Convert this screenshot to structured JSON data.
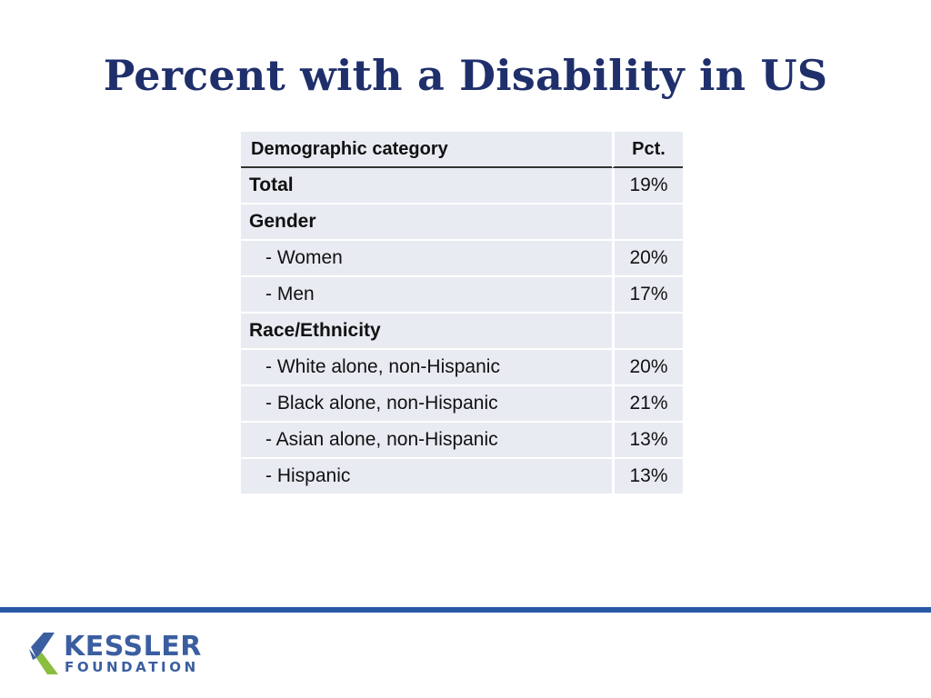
{
  "slide": {
    "title": "Percent with a Disability in US"
  },
  "table": {
    "headers": {
      "category": "Demographic category",
      "pct": "Pct."
    },
    "rows": [
      {
        "label": "Total",
        "value": "19%"
      },
      {
        "label": "Gender",
        "value": ""
      },
      {
        "label": "- Women",
        "value": "20%"
      },
      {
        "label": "- Men",
        "value": "17%"
      },
      {
        "label": "Race/Ethnicity",
        "value": ""
      },
      {
        "label": "- White alone, non-Hispanic",
        "value": "20%"
      },
      {
        "label": "- Black alone, non-Hispanic",
        "value": "21%"
      },
      {
        "label": "- Asian alone, non-Hispanic",
        "value": "13%"
      },
      {
        "label": "- Hispanic",
        "value": "13%"
      }
    ]
  },
  "footer": {
    "logo_line1": "KESSLER",
    "logo_line2": "FOUNDATION"
  },
  "colors": {
    "title": "#1f2f6b",
    "rule": "#2a58a5",
    "table_fill": "#e9ebf2",
    "logo_blue": "#3b5ea0",
    "logo_green": "#8bbd3f"
  }
}
